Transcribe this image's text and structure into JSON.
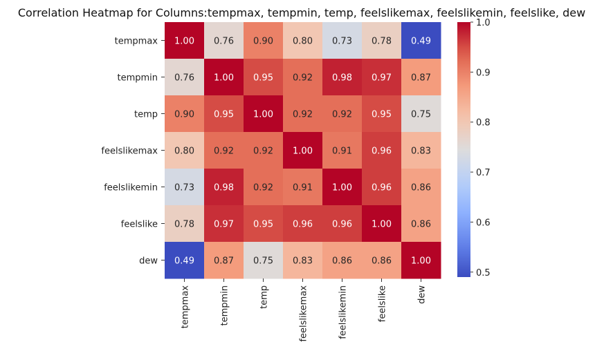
{
  "chart_data": {
    "type": "heatmap",
    "title": "Correlation Heatmap for Columns:tempmax, tempmin, temp, feelslikemax, feelslikemin, feelslike, dew",
    "rows": [
      "tempmax",
      "tempmin",
      "temp",
      "feelslikemax",
      "feelslikemin",
      "feelslike",
      "dew"
    ],
    "columns": [
      "tempmax",
      "tempmin",
      "temp",
      "feelslikemax",
      "feelslikemin",
      "feelslike",
      "dew"
    ],
    "values": [
      [
        1.0,
        0.76,
        0.9,
        0.8,
        0.73,
        0.78,
        0.49
      ],
      [
        0.76,
        1.0,
        0.95,
        0.92,
        0.98,
        0.97,
        0.87
      ],
      [
        0.9,
        0.95,
        1.0,
        0.92,
        0.92,
        0.95,
        0.75
      ],
      [
        0.8,
        0.92,
        0.92,
        1.0,
        0.91,
        0.96,
        0.83
      ],
      [
        0.73,
        0.98,
        0.92,
        0.91,
        1.0,
        0.96,
        0.86
      ],
      [
        0.78,
        0.97,
        0.95,
        0.96,
        0.96,
        1.0,
        0.86
      ],
      [
        0.49,
        0.87,
        0.75,
        0.83,
        0.86,
        0.86,
        1.0
      ]
    ],
    "value_format": "2 decimals",
    "colormap": "coolwarm",
    "colorbar": {
      "range": [
        0.49,
        1.0
      ],
      "ticks": [
        "0.5",
        "0.6",
        "0.7",
        "0.8",
        "0.9",
        "1.0"
      ],
      "tick_values": [
        0.5,
        0.6,
        0.7,
        0.8,
        0.9,
        1.0
      ]
    },
    "legend": "colorbar-right",
    "grid": false
  }
}
